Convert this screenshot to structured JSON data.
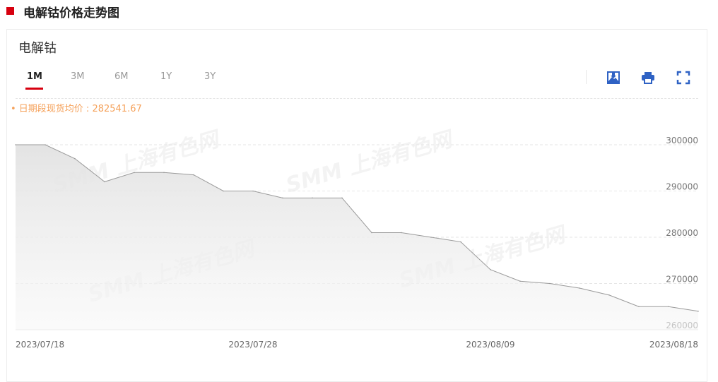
{
  "header": {
    "title": "电解钴价格走势图"
  },
  "card": {
    "title": "电解钴",
    "tabs": [
      {
        "label": "1M",
        "active": true
      },
      {
        "label": "3M",
        "active": false
      },
      {
        "label": "6M",
        "active": false
      },
      {
        "label": "1Y",
        "active": false
      },
      {
        "label": "3Y",
        "active": false
      }
    ],
    "tools": [
      "download-image-icon",
      "print-icon",
      "fullscreen-icon"
    ],
    "average_label": "• 日期段现货均价 : 282541.67",
    "watermark": "SMM 上海有色网"
  },
  "colors": {
    "accent": "#d7000f",
    "tool_icon": "#2f62c4",
    "avg_text": "#f5a15a",
    "line": "#9a9a9a"
  },
  "chart_data": {
    "type": "area",
    "title": "",
    "xlabel": "",
    "ylabel": "",
    "x": [
      "2023/07/18",
      "2023/07/19",
      "2023/07/20",
      "2023/07/21",
      "2023/07/24",
      "2023/07/25",
      "2023/07/26",
      "2023/07/27",
      "2023/07/28",
      "2023/07/31",
      "2023/08/01",
      "2023/08/02",
      "2023/08/03",
      "2023/08/04",
      "2023/08/07",
      "2023/08/08",
      "2023/08/09",
      "2023/08/10",
      "2023/08/11",
      "2023/08/14",
      "2023/08/15",
      "2023/08/16",
      "2023/08/17",
      "2023/08/18"
    ],
    "values": [
      300000,
      300000,
      297000,
      292000,
      294000,
      294000,
      293500,
      290000,
      290000,
      288500,
      288500,
      288500,
      281000,
      281000,
      280000,
      279000,
      273000,
      270500,
      270000,
      269000,
      267500,
      265000,
      265000,
      264000
    ],
    "ylim": [
      260000,
      300000
    ],
    "yticks": [
      "260000",
      "270000",
      "280000",
      "290000",
      "300000"
    ],
    "xticks": [
      {
        "index": 0,
        "label": "2023/07/18"
      },
      {
        "index": 8,
        "label": "2023/07/28"
      },
      {
        "index": 16,
        "label": "2023/08/09"
      },
      {
        "index": 23,
        "label": "2023/08/18"
      }
    ],
    "grid": true,
    "yaxis_position": "right"
  }
}
